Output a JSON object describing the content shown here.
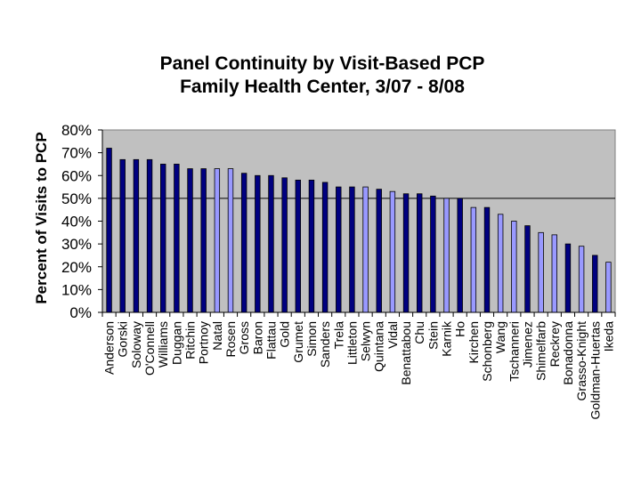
{
  "chart_data": {
    "type": "bar",
    "title_lines": [
      "Panel Continuity by Visit-Based PCP",
      "Family Health Center, 3/07 - 8/08"
    ],
    "xlabel": "",
    "ylabel": "Percent of Visits to PCP",
    "ylim": [
      0,
      80
    ],
    "yticks": [
      "0%",
      "10%",
      "20%",
      "30%",
      "40%",
      "50%",
      "60%",
      "70%",
      "80%"
    ],
    "grid": "horizontal",
    "reference_line": 50,
    "colors": {
      "plot_bg": "#c0c0c0",
      "bar_dark": "#000080",
      "bar_light": "#9999ff",
      "bar_edge": "#000000"
    },
    "categories": [
      "Anderson",
      "Gorski",
      "Soloway",
      "O'Connell",
      "Williams",
      "Duggan",
      "Ritchin",
      "Portnoy",
      "Natal",
      "Rosen",
      "Gross",
      "Baron",
      "Flattau",
      "Gold",
      "Grumet",
      "Simon",
      "Sanders",
      "Trela",
      "Littleton",
      "Selwyn",
      "Quintana",
      "Vidal",
      "Benattabou",
      "Chu",
      "Stein",
      "Karnik",
      "Ho",
      "Kirchen",
      "Schonberg",
      "Wang",
      "Tschanneri",
      "Jimenez",
      "Shimelfarb",
      "Reckrey",
      "Bonadonna",
      "Grasso-Knight",
      "Goldman-Huertas",
      "Ikeda"
    ],
    "values": [
      72,
      67,
      67,
      67,
      65,
      65,
      63,
      63,
      63,
      63,
      61,
      60,
      60,
      59,
      58,
      58,
      57,
      55,
      55,
      55,
      54,
      53,
      52,
      52,
      51,
      50,
      50,
      46,
      46,
      43,
      40,
      38,
      35,
      34,
      30,
      29,
      25,
      22
    ],
    "bar_tone": [
      "dark",
      "dark",
      "dark",
      "dark",
      "dark",
      "dark",
      "dark",
      "dark",
      "light",
      "light",
      "dark",
      "dark",
      "dark",
      "dark",
      "dark",
      "dark",
      "dark",
      "dark",
      "dark",
      "light",
      "dark",
      "light",
      "dark",
      "dark",
      "dark",
      "light",
      "dark",
      "light",
      "dark",
      "light",
      "light",
      "dark",
      "light",
      "light",
      "dark",
      "light",
      "dark",
      "light"
    ]
  }
}
